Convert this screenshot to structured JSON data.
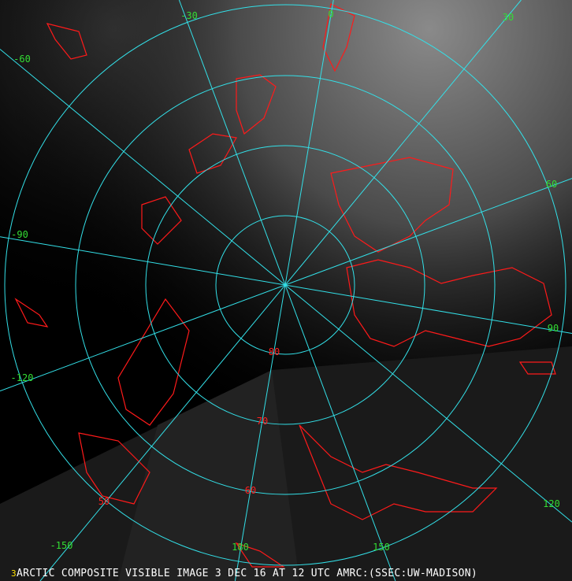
{
  "caption": {
    "frame_number": "3",
    "text": "ARCTIC COMPOSITE VISIBLE IMAGE 3 DEC 16 AT 12 UTC AMRC:(SSEC:UW-MADISON)"
  },
  "map": {
    "projection": "polar-stereographic-north",
    "graticule_color": "#33e0e8",
    "coastline_color": "#ff1a1a",
    "longitude_label_color": "#33dd33",
    "latitude_label_color": "#ff2020",
    "latitude_circles": [
      "80",
      "70",
      "60",
      "50"
    ],
    "longitude_labels": [
      "0",
      "30",
      "60",
      "90",
      "120",
      "150",
      "180",
      "-150",
      "-120",
      "-90",
      "-60",
      "-30"
    ]
  }
}
